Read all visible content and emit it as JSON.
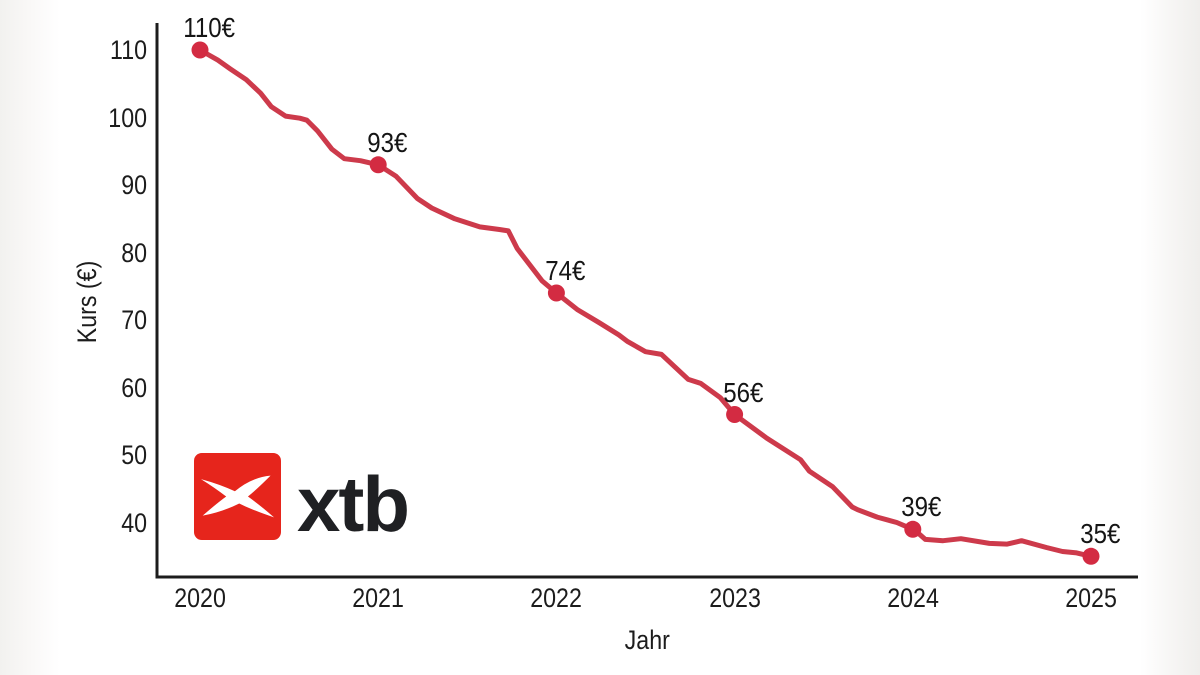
{
  "chart_data": {
    "type": "line",
    "title": "",
    "xlabel": "Jahr",
    "ylabel": "Kurs (€)",
    "x_ticks": [
      2020,
      2021,
      2022,
      2023,
      2024,
      2025
    ],
    "y_ticks": [
      110,
      100,
      90,
      80,
      70,
      60,
      50,
      40
    ],
    "xlim": [
      2020,
      2025
    ],
    "ylim": [
      33,
      114
    ],
    "grid": false,
    "legend": "none",
    "axis_color": "#1c1c1c",
    "line_color": "#cd3a4b",
    "point_color": "#d32b42",
    "points": [
      {
        "year": 2020,
        "value": 110,
        "label": "110€"
      },
      {
        "year": 2021,
        "value": 93,
        "label": "93€"
      },
      {
        "year": 2022,
        "value": 74,
        "label": "74€"
      },
      {
        "year": 2023,
        "value": 56,
        "label": "56€"
      },
      {
        "year": 2024,
        "value": 39,
        "label": "39€"
      },
      {
        "year": 2025,
        "value": 35,
        "label": "35€"
      }
    ],
    "line_path": [
      [
        2020.0,
        110
      ],
      [
        2020.1,
        108.5
      ],
      [
        2020.17,
        107.2
      ],
      [
        2020.26,
        105.6
      ],
      [
        2020.34,
        103.6
      ],
      [
        2020.4,
        101.6
      ],
      [
        2020.48,
        100.2
      ],
      [
        2020.56,
        99.9
      ],
      [
        2020.6,
        99.6
      ],
      [
        2020.66,
        98.0
      ],
      [
        2020.74,
        95.3
      ],
      [
        2020.81,
        93.9
      ],
      [
        2020.9,
        93.6
      ],
      [
        2021.0,
        93
      ],
      [
        2021.1,
        91.3
      ],
      [
        2021.22,
        88.0
      ],
      [
        2021.3,
        86.6
      ],
      [
        2021.43,
        85.0
      ],
      [
        2021.57,
        83.8
      ],
      [
        2021.68,
        83.4
      ],
      [
        2021.73,
        83.2
      ],
      [
        2021.78,
        80.6
      ],
      [
        2021.92,
        75.8
      ],
      [
        2022.0,
        74
      ],
      [
        2022.12,
        71.5
      ],
      [
        2022.24,
        69.6
      ],
      [
        2022.35,
        67.8
      ],
      [
        2022.4,
        66.8
      ],
      [
        2022.5,
        65.3
      ],
      [
        2022.59,
        64.9
      ],
      [
        2022.74,
        61.2
      ],
      [
        2022.81,
        60.6
      ],
      [
        2022.92,
        58.5
      ],
      [
        2023.0,
        56
      ],
      [
        2023.18,
        52.5
      ],
      [
        2023.37,
        49.3
      ],
      [
        2023.42,
        47.6
      ],
      [
        2023.55,
        45.3
      ],
      [
        2023.66,
        42.3
      ],
      [
        2023.69,
        41.9
      ],
      [
        2023.8,
        40.8
      ],
      [
        2023.91,
        40.0
      ],
      [
        2024.0,
        39
      ],
      [
        2024.04,
        38.2
      ],
      [
        2024.07,
        37.5
      ],
      [
        2024.17,
        37.3
      ],
      [
        2024.27,
        37.6
      ],
      [
        2024.43,
        36.9
      ],
      [
        2024.53,
        36.8
      ],
      [
        2024.61,
        37.3
      ],
      [
        2024.75,
        36.3
      ],
      [
        2024.84,
        35.7
      ],
      [
        2024.92,
        35.5
      ],
      [
        2025.0,
        35
      ]
    ]
  },
  "logo": {
    "text": "xtb",
    "square_color": "#e6251c",
    "mark": "xtb-x-mark"
  }
}
